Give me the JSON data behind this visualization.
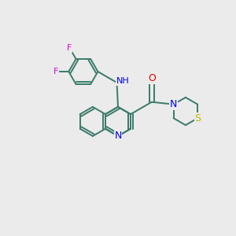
{
  "background_color": "#ebebeb",
  "figsize": [
    3.0,
    3.0
  ],
  "dpi": 100,
  "atom_colors": {
    "C": "#3a7a6a",
    "N": "#0000ee",
    "O": "#ee0000",
    "F": "#dd00dd",
    "S": "#bbbb00",
    "H": "#555555"
  },
  "bond_color": "#3a7a6a",
  "font_size": 9,
  "lw": 1.4
}
